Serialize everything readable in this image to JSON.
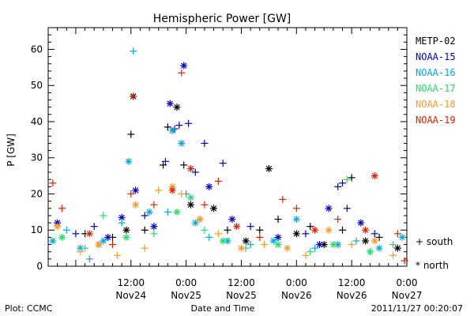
{
  "chart_data": {
    "type": "scatter",
    "title": "Hemispheric Power [GW]",
    "xlabel": "Date and Time",
    "ylabel": "P [GW]",
    "ylim": [
      0,
      66
    ],
    "xlim": [
      "2011-11-23T18:00",
      "2011-11-27T00:00"
    ],
    "y_ticks": [
      0,
      10,
      20,
      30,
      40,
      50,
      60
    ],
    "x_ticks": [
      {
        "at": "2011-11-24T12:00",
        "time": "12:00",
        "date": "Nov24"
      },
      {
        "at": "2011-11-25T00:00",
        "time": "0:00",
        "date": "Nov25"
      },
      {
        "at": "2011-11-25T12:00",
        "time": "12:00",
        "date": "Nov25"
      },
      {
        "at": "2011-11-26T00:00",
        "time": "0:00",
        "date": "Nov26"
      },
      {
        "at": "2011-11-26T12:00",
        "time": "12:00",
        "date": "Nov26"
      },
      {
        "at": "2011-11-27T00:00",
        "time": "0:00",
        "date": "Nov27"
      }
    ],
    "legend_placement": "right",
    "marker_legend": [
      {
        "symbol": "+",
        "label": "south"
      },
      {
        "symbol": "*",
        "label": "north"
      }
    ],
    "series": [
      {
        "name": "METP-02",
        "color": "#000000",
        "points": [
          [
            "2011-11-24T02:00",
            9,
            "+"
          ],
          [
            "2011-11-24T05:00",
            6,
            "*"
          ],
          [
            "2011-11-24T08:00",
            8,
            "+"
          ],
          [
            "2011-11-24T11:00",
            10,
            "*"
          ],
          [
            "2011-11-24T12:00",
            36.5,
            "+"
          ],
          [
            "2011-11-24T12:30",
            47,
            "*"
          ],
          [
            "2011-11-24T15:00",
            10,
            "+"
          ],
          [
            "2011-11-24T19:00",
            28,
            "+"
          ],
          [
            "2011-11-24T20:00",
            38.5,
            "+"
          ],
          [
            "2011-11-24T22:00",
            44,
            "*"
          ],
          [
            "2011-11-24T23:30",
            28,
            "+"
          ],
          [
            "2011-11-25T01:00",
            17,
            "*"
          ],
          [
            "2011-11-25T03:00",
            13,
            "+"
          ],
          [
            "2011-11-25T06:00",
            16,
            "*"
          ],
          [
            "2011-11-25T09:00",
            10,
            "+"
          ],
          [
            "2011-11-25T13:00",
            7,
            "*"
          ],
          [
            "2011-11-25T16:00",
            10,
            "+"
          ],
          [
            "2011-11-25T18:00",
            27,
            "*"
          ],
          [
            "2011-11-25T20:00",
            13,
            "+"
          ],
          [
            "2011-11-26T00:00",
            9,
            "*"
          ],
          [
            "2011-11-26T03:00",
            11,
            "+"
          ],
          [
            "2011-11-26T06:00",
            6,
            "*"
          ],
          [
            "2011-11-26T10:00",
            10,
            "+"
          ],
          [
            "2011-11-26T12:00",
            24.5,
            "+"
          ],
          [
            "2011-11-26T15:00",
            7,
            "*"
          ],
          [
            "2011-11-26T18:00",
            8,
            "+"
          ],
          [
            "2011-11-26T22:00",
            5,
            "*"
          ]
        ]
      },
      {
        "name": "NOAA-15",
        "color": "#0000cc",
        "points": [
          [
            "2011-11-23T20:00",
            12,
            "*"
          ],
          [
            "2011-11-24T00:00",
            9,
            "+"
          ],
          [
            "2011-11-24T04:00",
            11,
            "+"
          ],
          [
            "2011-11-24T07:00",
            8,
            "*"
          ],
          [
            "2011-11-24T10:00",
            13.5,
            "*"
          ],
          [
            "2011-11-24T13:00",
            21,
            "*"
          ],
          [
            "2011-11-24T15:00",
            14,
            "+"
          ],
          [
            "2011-11-24T17:00",
            11,
            "*"
          ],
          [
            "2011-11-24T19:30",
            29,
            "+"
          ],
          [
            "2011-11-24T20:30",
            45,
            "*"
          ],
          [
            "2011-11-24T21:30",
            38,
            "+"
          ],
          [
            "2011-11-24T22:30",
            39,
            "+"
          ],
          [
            "2011-11-24T23:30",
            55.5,
            "*"
          ],
          [
            "2011-11-25T00:30",
            39.5,
            "+"
          ],
          [
            "2011-11-25T02:00",
            26,
            "+"
          ],
          [
            "2011-11-25T04:00",
            34,
            "+"
          ],
          [
            "2011-11-25T05:00",
            22,
            "*"
          ],
          [
            "2011-11-25T08:00",
            28.5,
            "+"
          ],
          [
            "2011-11-25T10:00",
            13,
            "*"
          ],
          [
            "2011-11-25T14:00",
            11,
            "+"
          ],
          [
            "2011-11-25T20:00",
            8,
            "*"
          ],
          [
            "2011-11-26T02:00",
            9,
            "+"
          ],
          [
            "2011-11-26T05:00",
            6,
            "*"
          ],
          [
            "2011-11-26T07:00",
            16,
            "*"
          ],
          [
            "2011-11-26T09:00",
            22,
            "+"
          ],
          [
            "2011-11-26T10:00",
            23,
            "+"
          ],
          [
            "2011-11-26T11:00",
            16,
            "+"
          ],
          [
            "2011-11-26T14:00",
            12,
            "*"
          ],
          [
            "2011-11-26T17:00",
            9,
            "+"
          ]
        ]
      },
      {
        "name": "NOAA-16",
        "color": "#00aadd",
        "points": [
          [
            "2011-11-23T19:00",
            7,
            "*"
          ],
          [
            "2011-11-23T22:00",
            10,
            "+"
          ],
          [
            "2011-11-24T01:00",
            5,
            "*"
          ],
          [
            "2011-11-24T03:00",
            2,
            "+"
          ],
          [
            "2011-11-24T06:00",
            7,
            "*"
          ],
          [
            "2011-11-24T10:00",
            12,
            "+"
          ],
          [
            "2011-11-24T11:30",
            29,
            "*"
          ],
          [
            "2011-11-24T12:30",
            59.5,
            "+"
          ],
          [
            "2011-11-24T16:00",
            15,
            "*"
          ],
          [
            "2011-11-24T20:00",
            15,
            "+"
          ],
          [
            "2011-11-24T21:00",
            37.5,
            "*"
          ],
          [
            "2011-11-24T23:00",
            34,
            "*"
          ],
          [
            "2011-11-25T00:00",
            20,
            "+"
          ],
          [
            "2011-11-25T02:00",
            12,
            "*"
          ],
          [
            "2011-11-25T05:00",
            8,
            "+"
          ],
          [
            "2011-11-25T09:00",
            7,
            "*"
          ],
          [
            "2011-11-25T14:00",
            6,
            "+"
          ],
          [
            "2011-11-25T19:00",
            7,
            "*"
          ],
          [
            "2011-11-26T00:00",
            13,
            "*"
          ],
          [
            "2011-11-26T04:00",
            5,
            "+"
          ],
          [
            "2011-11-26T09:00",
            6,
            "*"
          ],
          [
            "2011-11-26T13:00",
            7,
            "+"
          ],
          [
            "2011-11-26T18:00",
            5,
            "*"
          ],
          [
            "2011-11-26T23:00",
            8,
            "*"
          ]
        ]
      },
      {
        "name": "NOAA-17",
        "color": "#22dd66",
        "points": [
          [
            "2011-11-23T21:00",
            8,
            "*"
          ],
          [
            "2011-11-24T02:00",
            5,
            "+"
          ],
          [
            "2011-11-24T06:00",
            14,
            "+"
          ],
          [
            "2011-11-24T11:00",
            8,
            "*"
          ],
          [
            "2011-11-24T17:00",
            9,
            "+"
          ],
          [
            "2011-11-24T22:00",
            15,
            "*"
          ],
          [
            "2011-11-25T01:00",
            19,
            "*"
          ],
          [
            "2011-11-25T04:00",
            10,
            "+"
          ],
          [
            "2011-11-25T08:00",
            7,
            "*"
          ],
          [
            "2011-11-25T13:00",
            5,
            "+"
          ],
          [
            "2011-11-25T20:00",
            6,
            "*"
          ],
          [
            "2011-11-26T03:00",
            4,
            "+"
          ],
          [
            "2011-11-26T08:00",
            6,
            "*"
          ],
          [
            "2011-11-26T11:00",
            24,
            "+"
          ],
          [
            "2011-11-26T16:00",
            4,
            "*"
          ],
          [
            "2011-11-26T21:00",
            6,
            "+"
          ]
        ]
      },
      {
        "name": "NOAA-18",
        "color": "#ff9922",
        "points": [
          [
            "2011-11-23T20:00",
            11,
            "*"
          ],
          [
            "2011-11-24T01:00",
            4,
            "+"
          ],
          [
            "2011-11-24T05:00",
            6,
            "*"
          ],
          [
            "2011-11-24T09:00",
            3,
            "+"
          ],
          [
            "2011-11-24T13:00",
            17,
            "*"
          ],
          [
            "2011-11-24T15:00",
            5,
            "+"
          ],
          [
            "2011-11-24T18:00",
            21,
            "+"
          ],
          [
            "2011-11-24T21:00",
            22,
            "*"
          ],
          [
            "2011-11-24T23:00",
            20,
            "+"
          ],
          [
            "2011-11-25T03:00",
            13,
            "*"
          ],
          [
            "2011-11-25T07:00",
            9,
            "+"
          ],
          [
            "2011-11-25T12:00",
            5,
            "*"
          ],
          [
            "2011-11-25T17:00",
            6,
            "+"
          ],
          [
            "2011-11-25T22:00",
            5,
            "*"
          ],
          [
            "2011-11-26T02:00",
            3,
            "+"
          ],
          [
            "2011-11-26T07:00",
            10,
            "*"
          ],
          [
            "2011-11-26T12:00",
            6,
            "+"
          ],
          [
            "2011-11-26T17:00",
            7,
            "*"
          ],
          [
            "2011-11-26T21:00",
            3,
            "+"
          ]
        ]
      },
      {
        "name": "NOAA-19",
        "color": "#dd2200",
        "points": [
          [
            "2011-11-23T19:00",
            23,
            "+"
          ],
          [
            "2011-11-23T21:00",
            16,
            "+"
          ],
          [
            "2011-11-24T03:00",
            9,
            "*"
          ],
          [
            "2011-11-24T08:00",
            6,
            "+"
          ],
          [
            "2011-11-24T12:00",
            20,
            "+"
          ],
          [
            "2011-11-24T12:30",
            47,
            "+"
          ],
          [
            "2011-11-24T17:00",
            17,
            "+"
          ],
          [
            "2011-11-24T21:00",
            21,
            "*"
          ],
          [
            "2011-11-24T23:00",
            53.5,
            "+"
          ],
          [
            "2011-11-25T01:00",
            27,
            "*"
          ],
          [
            "2011-11-25T04:00",
            17,
            "+"
          ],
          [
            "2011-11-25T07:00",
            23.5,
            "+"
          ],
          [
            "2011-11-25T11:00",
            11,
            "*"
          ],
          [
            "2011-11-25T16:00",
            8,
            "+"
          ],
          [
            "2011-11-25T21:00",
            18.5,
            "+"
          ],
          [
            "2011-11-26T00:00",
            16,
            "+"
          ],
          [
            "2011-11-26T04:00",
            10,
            "*"
          ],
          [
            "2011-11-26T09:00",
            13,
            "+"
          ],
          [
            "2011-11-26T15:00",
            10,
            "*"
          ],
          [
            "2011-11-26T17:00",
            25,
            "*"
          ],
          [
            "2011-11-26T22:00",
            9,
            "+"
          ],
          [
            "2011-11-26T23:30",
            1.5,
            "+"
          ]
        ]
      }
    ]
  },
  "footer": {
    "plot_credit": "Plot: CCMC",
    "timestamp": "2011/11/27 00:20:07"
  }
}
